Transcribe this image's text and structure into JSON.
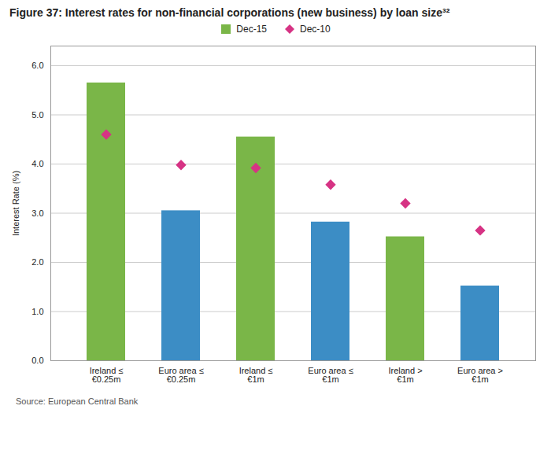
{
  "chart_data": {
    "type": "bar",
    "title": "Figure 37: Interest rates for non-financial corporations (new business) by loan size³²",
    "ylabel": "Interest Rate (%)",
    "source": "Source: European Central Bank",
    "categories": [
      "Ireland ≤\n€0.25m",
      "Euro area ≤\n€0.25m",
      "Ireland ≤\n€1m",
      "Euro area ≤\n€1m",
      "Ireland >\n€1m",
      "Euro area >\n€1m"
    ],
    "series": [
      {
        "name": "Dec-15",
        "type": "bar",
        "color": "#7ab648",
        "colors": [
          "#7ab648",
          "#3c8dc5",
          "#7ab648",
          "#3c8dc5",
          "#7ab648",
          "#3c8dc5"
        ],
        "values": [
          5.65,
          3.05,
          4.55,
          2.82,
          2.52,
          1.52
        ]
      },
      {
        "name": "Dec-10",
        "type": "scatter",
        "marker": "diamond",
        "color": "#d63384",
        "values": [
          4.6,
          3.98,
          3.92,
          3.58,
          3.2,
          2.65
        ]
      }
    ],
    "ylim": [
      0,
      6.4
    ],
    "yticks": [
      {
        "value": 0,
        "label": "0.0"
      },
      {
        "value": 1,
        "label": "1.0"
      },
      {
        "value": 2,
        "label": "2.0"
      },
      {
        "value": 3,
        "label": "3.0"
      },
      {
        "value": 4,
        "label": "4.0"
      },
      {
        "value": 5,
        "label": "5.0"
      },
      {
        "value": 6,
        "label": "6.0"
      }
    ],
    "grid": true,
    "legend": "top"
  }
}
